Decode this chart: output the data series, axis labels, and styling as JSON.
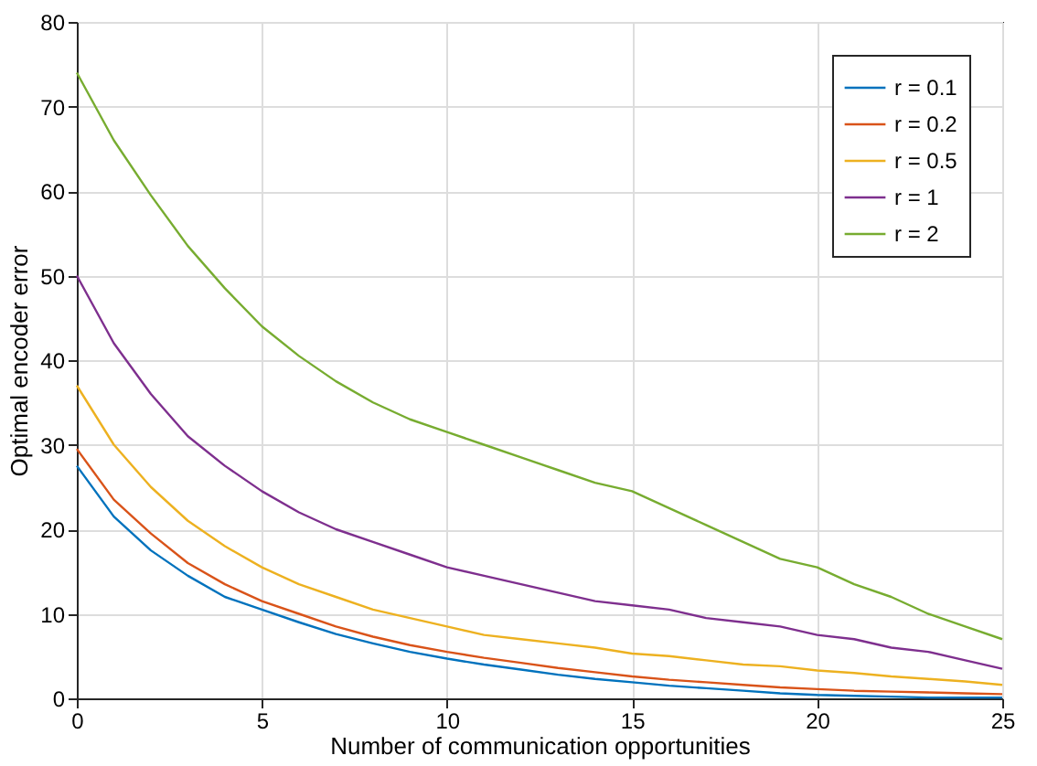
{
  "chart_data": {
    "type": "line",
    "xlabel": "Number of communication opportunities",
    "ylabel": "Optimal encoder error",
    "x": [
      0,
      1,
      2,
      3,
      4,
      5,
      6,
      7,
      8,
      9,
      10,
      11,
      12,
      13,
      14,
      15,
      16,
      17,
      18,
      19,
      20,
      21,
      22,
      23,
      24,
      25
    ],
    "series": [
      {
        "name": "r = 0.1",
        "color": "#0072bd",
        "values": [
          27.5,
          21.5,
          17.5,
          14.5,
          12,
          10.5,
          9,
          7.6,
          6.5,
          5.5,
          4.7,
          4,
          3.4,
          2.8,
          2.3,
          1.9,
          1.5,
          1.2,
          0.9,
          0.6,
          0.4,
          0.3,
          0.2,
          0.1,
          0.1,
          0.1
        ]
      },
      {
        "name": "r = 0.2",
        "color": "#d95319",
        "values": [
          29.5,
          23.5,
          19.5,
          16,
          13.5,
          11.5,
          10,
          8.5,
          7.3,
          6.3,
          5.5,
          4.8,
          4.2,
          3.6,
          3.1,
          2.6,
          2.2,
          1.9,
          1.6,
          1.3,
          1.1,
          0.9,
          0.8,
          0.7,
          0.6,
          0.5
        ]
      },
      {
        "name": "r = 0.5",
        "color": "#edb120",
        "values": [
          37,
          30,
          25,
          21,
          18,
          15.5,
          13.5,
          12,
          10.5,
          9.5,
          8.5,
          7.5,
          7,
          6.5,
          6,
          5.3,
          5,
          4.5,
          4,
          3.8,
          3.3,
          3,
          2.6,
          2.3,
          2,
          1.6
        ]
      },
      {
        "name": "r = 1",
        "color": "#7e2f8e",
        "values": [
          50,
          42,
          36,
          31,
          27.5,
          24.5,
          22,
          20,
          18.5,
          17,
          15.5,
          14.5,
          13.5,
          12.5,
          11.5,
          11,
          10.5,
          9.5,
          9,
          8.5,
          7.5,
          7,
          6,
          5.5,
          4.5,
          3.5
        ]
      },
      {
        "name": "r = 2",
        "color": "#77ac30",
        "values": [
          74,
          66,
          59.5,
          53.5,
          48.5,
          44,
          40.5,
          37.5,
          35,
          33,
          31.5,
          30,
          28.5,
          27,
          25.5,
          24.5,
          22.5,
          20.5,
          18.5,
          16.5,
          15.5,
          13.5,
          12,
          10,
          8.5,
          7
        ]
      }
    ],
    "xlim": [
      0,
      25
    ],
    "xticks": [
      0,
      5,
      10,
      15,
      20,
      25
    ],
    "ylim": [
      0,
      80
    ],
    "yticks": [
      0,
      10,
      20,
      30,
      40,
      50,
      60,
      70,
      80
    ],
    "grid": true,
    "legend": "top right",
    "marker": "none",
    "line_style": "solid"
  }
}
